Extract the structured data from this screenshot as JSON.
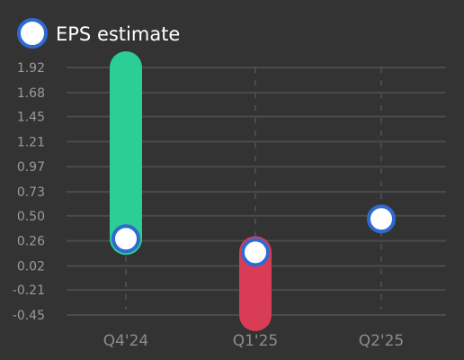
{
  "chart_data": {
    "type": "bar",
    "legend": {
      "label": "EPS estimate",
      "position": "top-left"
    },
    "categories": [
      "Q4'24",
      "Q1'25",
      "Q2'25"
    ],
    "y_ticks": [
      "1.92",
      "1.68",
      "1.45",
      "1.21",
      "0.97",
      "0.73",
      "0.50",
      "0.26",
      "0.02",
      "-0.21",
      "-0.45"
    ],
    "ylim": [
      -0.45,
      1.92
    ],
    "grid": true,
    "series": [
      {
        "name": "EPS estimate",
        "values": [
          0.28,
          0.15,
          0.47
        ]
      }
    ],
    "actual": [
      1.92,
      -0.45,
      null
    ],
    "colors": {
      "beat": "#2bce94",
      "miss": "#d93d55",
      "estimate_fill": "#ffffff",
      "estimate_stroke": "#2f6ad0",
      "grid": "#4b4b4b",
      "background": "#333333"
    }
  }
}
